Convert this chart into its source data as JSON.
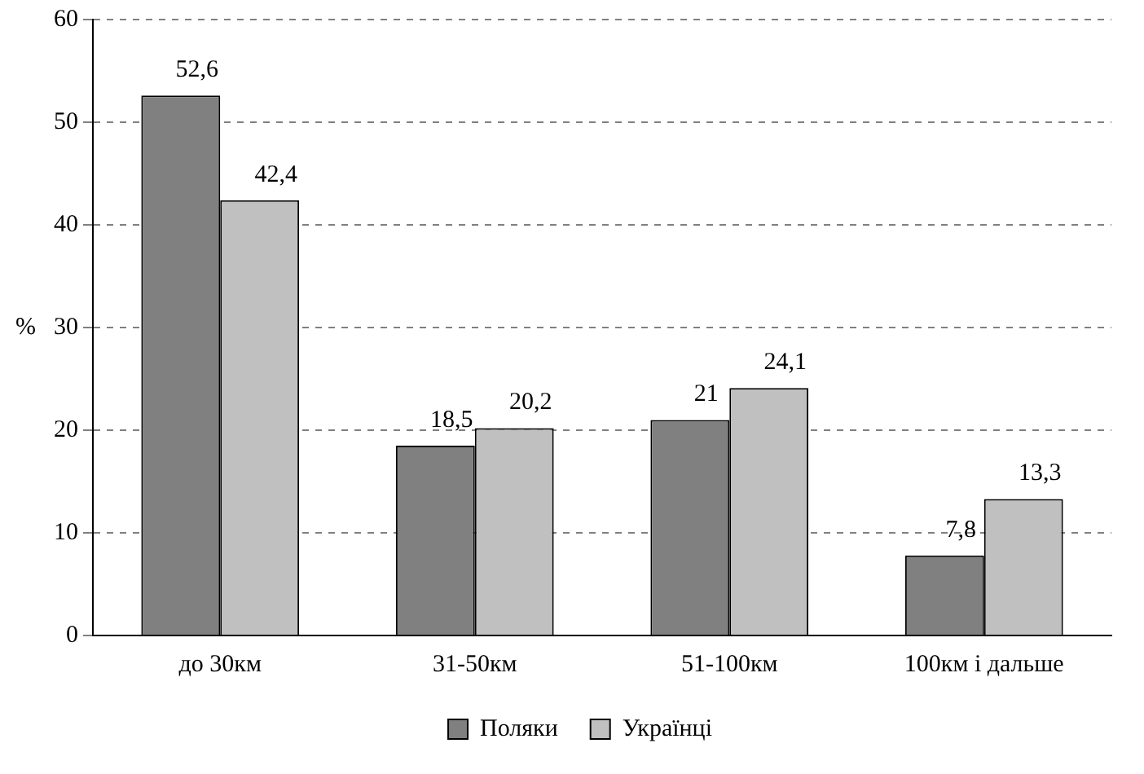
{
  "chart_data": {
    "type": "bar",
    "ylabel": "%",
    "categories": [
      "до 30км",
      "31-50км",
      "51-100км",
      "100км і дальше"
    ],
    "series": [
      {
        "name": "Поляки",
        "color": "#808080",
        "values": [
          52.6,
          18.5,
          21,
          7.8
        ],
        "value_labels": [
          "52,6",
          "18,5",
          "21",
          "7,8"
        ]
      },
      {
        "name": "Українці",
        "color": "#c0c0c0",
        "values": [
          42.4,
          20.2,
          24.1,
          13.3
        ],
        "value_labels": [
          "42,4",
          "20,2",
          "24,1",
          "13,3"
        ]
      }
    ],
    "ylim": [
      0,
      60
    ],
    "yticks": [
      0,
      10,
      20,
      30,
      40,
      50,
      60
    ],
    "grid": "y",
    "legend": "bottom"
  }
}
